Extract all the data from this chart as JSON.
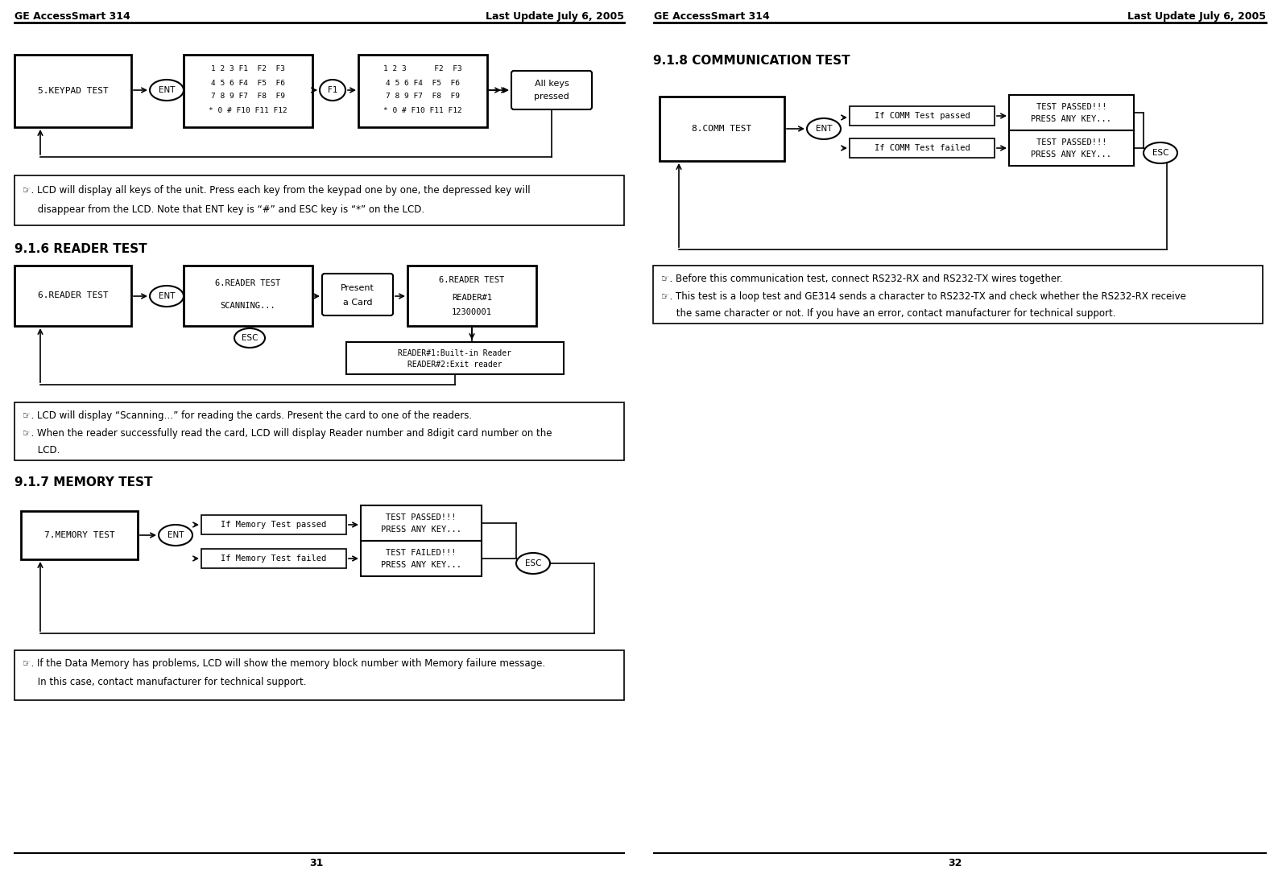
{
  "page_width": 15.87,
  "page_height": 10.86,
  "bg_color": "#ffffff",
  "header_left": "GE AccessSmart 314",
  "header_right": "Last Update July 6, 2005",
  "footer_left_page": "31",
  "footer_right_page": "32",
  "kp_box2_lines": [
    "1 2 3 F1  F2  F3",
    "4 5 6 F4  F5  F6",
    "7 8 9 F7  F8  F9",
    "* 0 # F10 F11 F12"
  ],
  "kp_box3_lines": [
    "1 2 3      F2  F3",
    "4 5 6 F4  F5  F6",
    "7 8 9 F7  F8  F9",
    "* 0 # F10 F11 F12"
  ],
  "reader_box2_lines": [
    "6.READER TEST",
    "SCANNING..."
  ],
  "reader_box3_lines": [
    "6.READER TEST",
    "READER#1",
    "12300001"
  ],
  "reader_box4_lines": [
    "READER#1:Built-in Reader",
    "READER#2:Exit reader"
  ],
  "mem_passed_result": [
    "TEST PASSED!!!",
    "PRESS ANY KEY..."
  ],
  "mem_failed_result": [
    "TEST FAILED!!!",
    "PRESS ANY KEY..."
  ],
  "comm_passed_result": [
    "TEST PASSED!!!",
    "PRESS ANY KEY..."
  ],
  "comm_failed_result": [
    "TEST PASSED!!!",
    "PRESS ANY KEY..."
  ],
  "note1_line1": "☞. LCD will display all keys of the unit. Press each key from the keypad one by one, the depressed key will",
  "note1_line2": "     disappear from the LCD. Note that ENT key is “#” and ESC key is “*” on the LCD.",
  "note2_line1": "☞. LCD will display “Scanning…” for reading the cards. Present the card to one of the readers.",
  "note2_line2": "☞. When the reader successfully read the card, LCD will display Reader number and 8digit card number on the",
  "note2_line3": "     LCD.",
  "note3_line1": "☞. If the Data Memory has problems, LCD will show the memory block number with Memory failure message.",
  "note3_line2": "     In this case, contact manufacturer for technical support.",
  "note4_line1": "☞. Before this communication test, connect RS232-RX and RS232-TX wires together.",
  "note4_line2": "☞. This test is a loop test and GE314 sends a character to RS232-TX and check whether the RS232-RX receive",
  "note4_line3": "     the same character or not. If you have an error, contact manufacturer for technical support."
}
